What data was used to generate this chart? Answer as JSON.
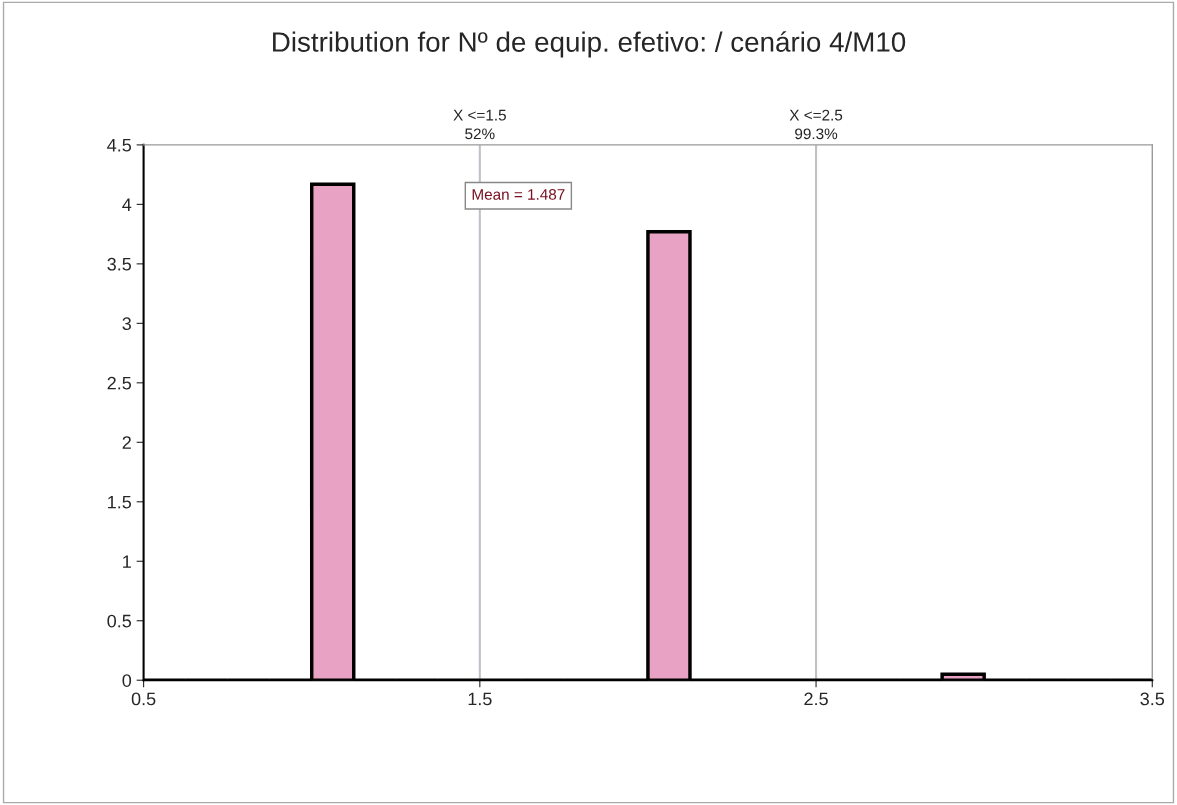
{
  "chart_data": {
    "type": "histogram",
    "title": "Distribution for Nº de equip. efetivo: / cenário 4/M10",
    "bins": [
      0.5,
      0.625,
      0.75,
      0.875,
      1.0,
      1.125,
      1.25,
      1.375,
      1.5,
      1.625,
      1.75,
      1.875,
      2.0,
      2.125,
      2.25,
      2.375,
      2.5,
      2.625,
      2.75,
      2.875,
      3.0,
      3.125,
      3.25,
      3.375,
      3.5
    ],
    "values": [
      0,
      0,
      0,
      0,
      4.17,
      0,
      0,
      0,
      0,
      0,
      0,
      0,
      3.77,
      0,
      0,
      0,
      0,
      0,
      0,
      0.05,
      0,
      0,
      0,
      0
    ],
    "color": "#e8a3c4",
    "xlim": [
      0.5,
      3.5
    ],
    "xticks": [
      0.5,
      1.5,
      2.5,
      3.5
    ],
    "ylim": [
      0,
      4.5
    ],
    "yticks": [
      0,
      0.5,
      1,
      1.5,
      2,
      2.5,
      3,
      3.5,
      4,
      4.5
    ],
    "ref_lines": [
      {
        "axis": "x",
        "value": 1.5,
        "label": "X <=1.5\n52%",
        "color": "#c0c0c8"
      },
      {
        "axis": "x",
        "value": 2.5,
        "label": "X <=2.5\n99.3%",
        "color": "#c0c0c8"
      }
    ],
    "annotations": [
      "Mean = 1.487"
    ],
    "grid": false
  }
}
